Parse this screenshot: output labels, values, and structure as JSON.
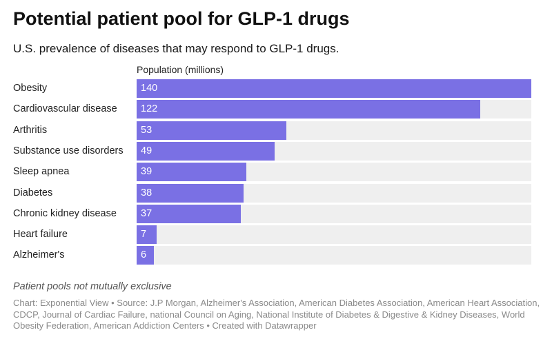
{
  "header": {
    "title": "Potential patient pool for GLP-1 drugs",
    "subtitle": "U.S. prevalence of diseases that may respond to GLP-1 drugs."
  },
  "chart_data": {
    "type": "bar",
    "orientation": "horizontal",
    "value_header": "Population (millions)",
    "categories": [
      "Obesity",
      "Cardiovascular disease",
      "Arthritis",
      "Substance use disorders",
      "Sleep apnea",
      "Diabetes",
      "Chronic kidney disease",
      "Heart failure",
      "Alzheimer's"
    ],
    "values": [
      140,
      122,
      53,
      49,
      39,
      38,
      37,
      7,
      6
    ],
    "xlim": [
      0,
      140
    ],
    "bar_color": "#7a70e4",
    "track_color": "#efefef",
    "value_label_color": "#ffffff"
  },
  "footer": {
    "note": "Patient pools not mutually exclusive",
    "source": "Chart: Exponential View • Source: J.P Morgan, Alzheimer's Association, American Diabetes Association, American Heart Association, CDCP, Journal of Cardiac Failure, national Council on Aging, National Institute of Diabetes & Digestive & Kidney Diseases, World Obesity Federation, American Addiction Centers • Created with Datawrapper"
  }
}
